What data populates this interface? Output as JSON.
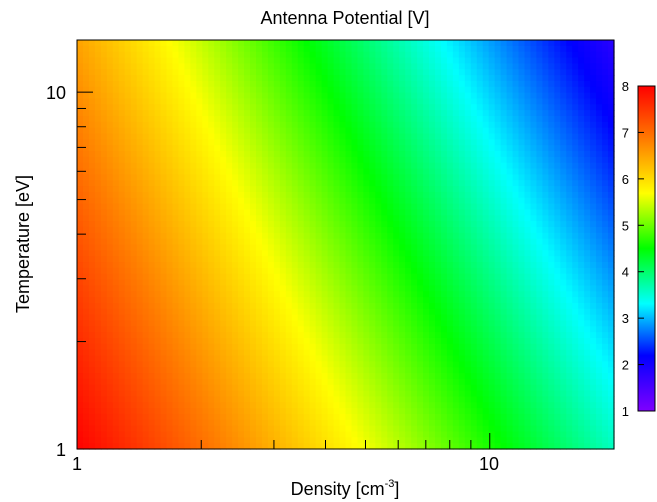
{
  "chart_data": {
    "type": "heatmap",
    "title": "Antenna Potential [V]",
    "xlabel": "Density [cm",
    "xlabel_sup": "-3",
    "xlabel_end": "]",
    "ylabel": "Temperature [eV]",
    "x_scale": "log",
    "y_scale": "log",
    "xlim": [
      1,
      20
    ],
    "ylim": [
      1,
      14
    ],
    "x_ticks": [
      {
        "value": 1,
        "label": "1"
      },
      {
        "value": 10,
        "label": "10"
      }
    ],
    "y_ticks": [
      {
        "value": 1,
        "label": "1"
      },
      {
        "value": 10,
        "label": "10"
      }
    ],
    "colorbar": {
      "range": [
        1,
        8
      ],
      "ticks": [
        {
          "value": 1,
          "label": "1"
        },
        {
          "value": 2,
          "label": "2"
        },
        {
          "value": 3,
          "label": "3"
        },
        {
          "value": 4,
          "label": "4"
        },
        {
          "value": 5,
          "label": "5"
        },
        {
          "value": 6,
          "label": "6"
        },
        {
          "value": 7,
          "label": "7"
        },
        {
          "value": 8,
          "label": "8"
        }
      ],
      "colormap": "rainbow"
    },
    "corner_values": {
      "low_density_low_temperature": 8.0,
      "low_density_high_temperature": 6.5,
      "high_density_low_temperature": 3.6,
      "high_density_high_temperature": 1.8
    },
    "grid": false
  }
}
